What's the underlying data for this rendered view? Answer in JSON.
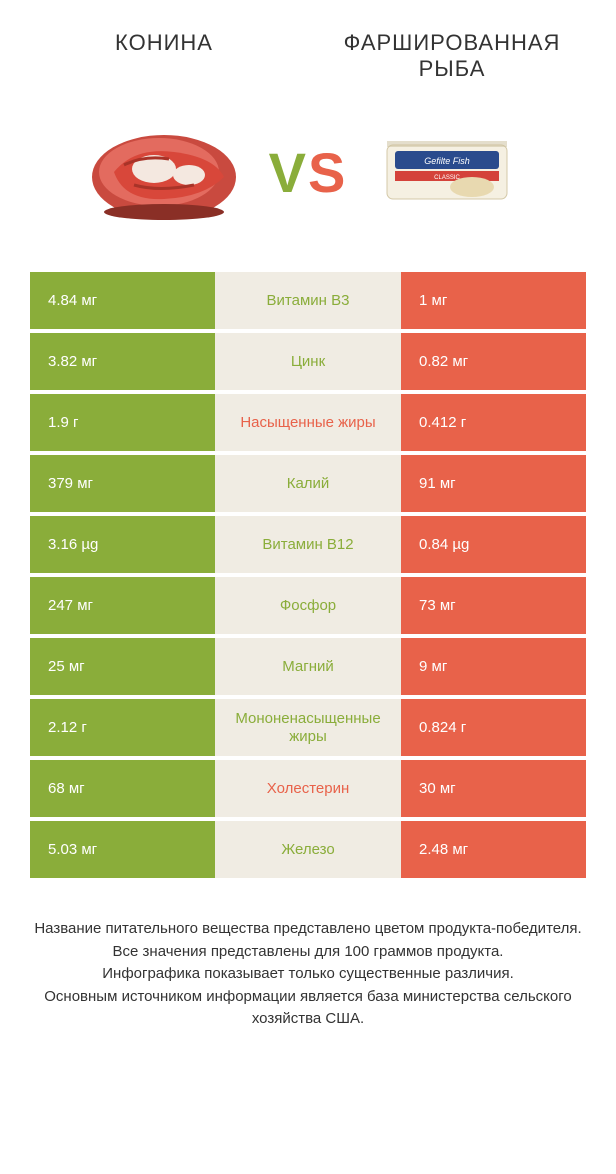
{
  "titles": {
    "left": "КОНИНА",
    "right": "ФАРШИРОВАННАЯ РЫБА"
  },
  "vs": {
    "v": "V",
    "s": "S"
  },
  "colors": {
    "left_bar": "#8aad3a",
    "right_bar": "#e8624a",
    "mid_bg": "#f0ece3",
    "nutrient_left_winner": "#8aad3a",
    "nutrient_right_winner": "#e8624a",
    "title_text": "#333333",
    "footer_text": "#333333"
  },
  "rows": [
    {
      "left": "4.84 мг",
      "mid": "Витамин B3",
      "right": "1 мг",
      "winner": "left"
    },
    {
      "left": "3.82 мг",
      "mid": "Цинк",
      "right": "0.82 мг",
      "winner": "left"
    },
    {
      "left": "1.9 г",
      "mid": "Насыщенные жиры",
      "right": "0.412 г",
      "winner": "right"
    },
    {
      "left": "379 мг",
      "mid": "Калий",
      "right": "91 мг",
      "winner": "left"
    },
    {
      "left": "3.16 µg",
      "mid": "Витамин B12",
      "right": "0.84 µg",
      "winner": "left"
    },
    {
      "left": "247 мг",
      "mid": "Фосфор",
      "right": "73 мг",
      "winner": "left"
    },
    {
      "left": "25 мг",
      "mid": "Магний",
      "right": "9 мг",
      "winner": "left"
    },
    {
      "left": "2.12 г",
      "mid": "Мононенасыщенные жиры",
      "right": "0.824 г",
      "winner": "left"
    },
    {
      "left": "68 мг",
      "mid": "Холестерин",
      "right": "30 мг",
      "winner": "right"
    },
    {
      "left": "5.03 мг",
      "mid": "Железо",
      "right": "2.48 мг",
      "winner": "left"
    }
  ],
  "footer": {
    "l1": "Название питательного вещества представлено цветом продукта-победителя.",
    "l2": "Все значения представлены для 100 граммов продукта.",
    "l3": "Инфографика показывает только существенные различия.",
    "l4": "Основным источником информации является база министерства сельского хозяйства США."
  }
}
